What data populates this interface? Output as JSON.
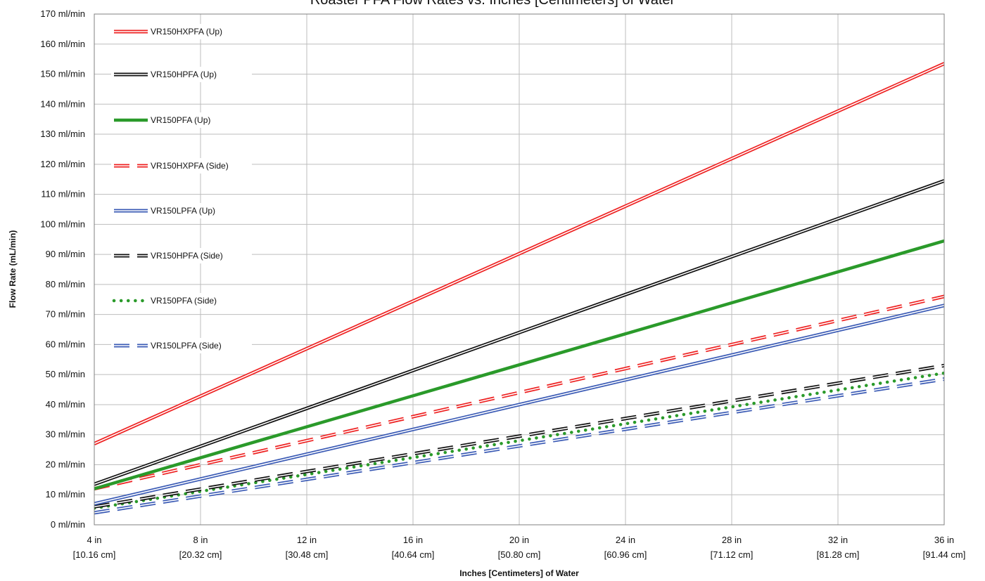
{
  "chart_data": {
    "type": "line",
    "title": "Roaster PFA Flow Rates vs. Inches [Centimeters] of Water",
    "xlabel": "Inches [Centimeters] of Water",
    "ylabel": "Flow Rate (mL/min)",
    "xlim": [
      4,
      36
    ],
    "ylim": [
      0,
      170
    ],
    "grid": true,
    "legend_position": "top-left",
    "x_ticks": [
      {
        "value": 4,
        "label": "4 in",
        "sublabel": "[10.16 cm]"
      },
      {
        "value": 8,
        "label": "8 in",
        "sublabel": "[20.32 cm]"
      },
      {
        "value": 12,
        "label": "12 in",
        "sublabel": "[30.48 cm]"
      },
      {
        "value": 16,
        "label": "16 in",
        "sublabel": "[40.64 cm]"
      },
      {
        "value": 20,
        "label": "20 in",
        "sublabel": "[50.80 cm]"
      },
      {
        "value": 24,
        "label": "24 in",
        "sublabel": "[60.96 cm]"
      },
      {
        "value": 28,
        "label": "28 in",
        "sublabel": "[71.12 cm]"
      },
      {
        "value": 32,
        "label": "32 in",
        "sublabel": "[81.28 cm]"
      },
      {
        "value": 36,
        "label": "36 in",
        "sublabel": "[91.44 cm]"
      }
    ],
    "y_ticks": [
      {
        "value": 0,
        "label": "0 ml/min"
      },
      {
        "value": 10,
        "label": "10 ml/min"
      },
      {
        "value": 20,
        "label": "20 ml/min"
      },
      {
        "value": 30,
        "label": "30 ml/min"
      },
      {
        "value": 40,
        "label": "40 ml/min"
      },
      {
        "value": 50,
        "label": "50 ml/min"
      },
      {
        "value": 60,
        "label": "60 ml/min"
      },
      {
        "value": 70,
        "label": "70 ml/min"
      },
      {
        "value": 80,
        "label": "80 ml/min"
      },
      {
        "value": 90,
        "label": "90 ml/min"
      },
      {
        "value": 100,
        "label": "100 ml/min"
      },
      {
        "value": 110,
        "label": "110 ml/min"
      },
      {
        "value": 120,
        "label": "120 ml/min"
      },
      {
        "value": 130,
        "label": "130 ml/min"
      },
      {
        "value": 140,
        "label": "140 ml/min"
      },
      {
        "value": 150,
        "label": "150 ml/min"
      },
      {
        "value": 160,
        "label": "160 ml/min"
      },
      {
        "value": 170,
        "label": "170 ml/min"
      }
    ],
    "series": [
      {
        "name": "VR150HXPFA (Up)",
        "color": "#ee2222",
        "style": "double-solid",
        "x": [
          4,
          36
        ],
        "y": [
          27,
          153.5
        ]
      },
      {
        "name": "VR150HPFA (Up)",
        "color": "#111111",
        "style": "double-solid",
        "x": [
          4,
          36
        ],
        "y": [
          13.5,
          114.5
        ]
      },
      {
        "name": "VR150PFA (Up)",
        "color": "#2a9a2a",
        "style": "solid-thick",
        "x": [
          4,
          36
        ],
        "y": [
          12,
          94.5
        ]
      },
      {
        "name": "VR150HXPFA (Side)",
        "color": "#ee2222",
        "style": "double-dashed",
        "x": [
          4,
          36
        ],
        "y": [
          12,
          76
        ]
      },
      {
        "name": "VR150LPFA (Up)",
        "color": "#3b5bb5",
        "style": "double-solid",
        "x": [
          4,
          36
        ],
        "y": [
          7,
          73
        ]
      },
      {
        "name": "VR150HPFA (Side)",
        "color": "#111111",
        "style": "double-dashed",
        "x": [
          4,
          36
        ],
        "y": [
          6,
          53
        ]
      },
      {
        "name": "VR150PFA (Side)",
        "color": "#2a9a2a",
        "style": "dotted",
        "x": [
          4,
          36
        ],
        "y": [
          5.5,
          50.5
        ]
      },
      {
        "name": "VR150LPFA (Side)",
        "color": "#3b5bb5",
        "style": "double-dashed",
        "x": [
          4,
          36
        ],
        "y": [
          4,
          48.5
        ]
      }
    ]
  }
}
